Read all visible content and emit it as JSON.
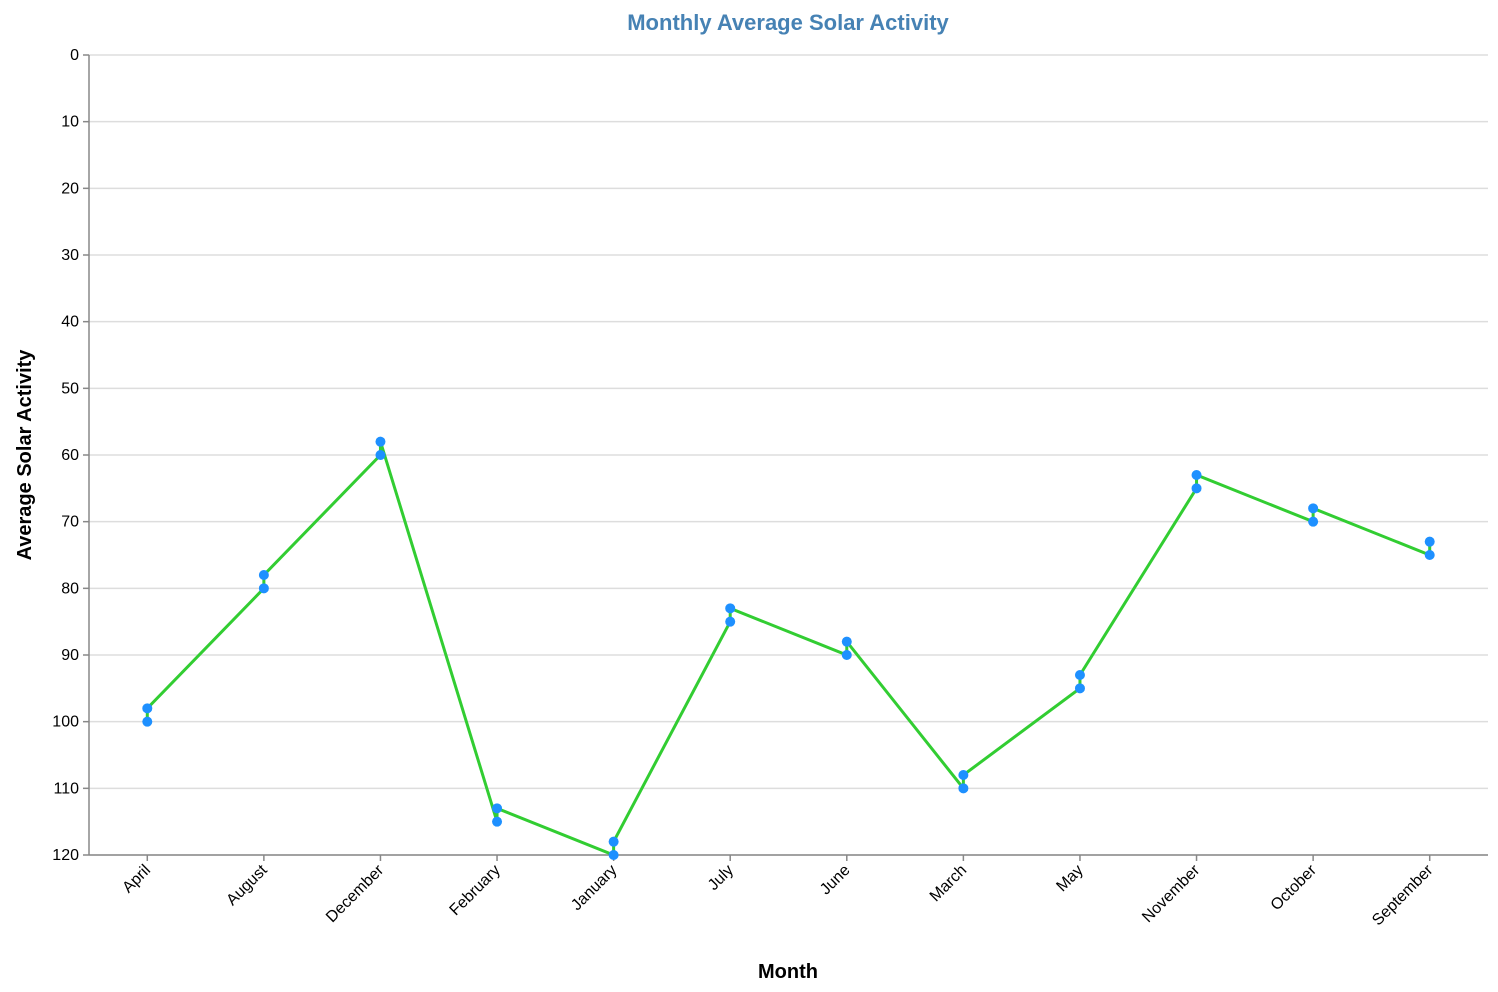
{
  "chart_data": {
    "type": "line",
    "title": "Monthly Average Solar Activity",
    "xlabel": "Month",
    "ylabel": "Average Solar Activity",
    "y_ticks": [
      0,
      10,
      20,
      30,
      40,
      50,
      60,
      70,
      80,
      90,
      100,
      110,
      120
    ],
    "ylim": [
      0,
      120
    ],
    "y_reversed": true,
    "grid": true,
    "categories": [
      "April",
      "August",
      "December",
      "February",
      "January",
      "July",
      "June",
      "March",
      "May",
      "November",
      "October",
      "September"
    ],
    "series": [
      {
        "values": [
          100,
          80,
          60,
          115,
          120,
          85,
          90,
          110,
          95,
          65,
          70,
          75
        ]
      },
      {
        "values": [
          98,
          78,
          58,
          113,
          118,
          83,
          88,
          108,
          93,
          63,
          68,
          73
        ]
      }
    ],
    "colors": {
      "line": "#32cd32",
      "point": "#1e90ff",
      "title": "#4682b4"
    }
  }
}
